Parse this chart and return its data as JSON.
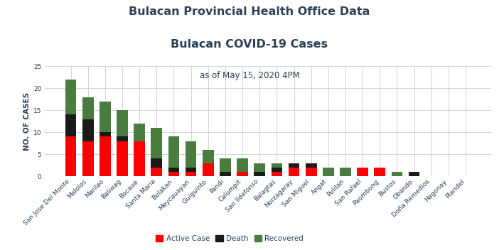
{
  "title_line1": "Bulacan Provincial Health Office Data",
  "title_line2": "Bulacan COVID-19 Cases",
  "subtitle": "as of May 15, 2020 4PM",
  "ylabel": "NO. OF CASES",
  "ylim": [
    0,
    25
  ],
  "yticks": [
    0,
    5,
    10,
    15,
    20,
    25
  ],
  "categories": [
    "San Jose Del Monte",
    "Malolos",
    "Marilao",
    "Baliwag",
    "Bocaue",
    "Santa Maria",
    "Bulakan",
    "Meycauayan",
    "Guiguinto",
    "Pandi",
    "Calumpit",
    "San Ildefonso",
    "Balagtas",
    "Norzagaray",
    "San Miguel",
    "Angat",
    "Pulilan",
    "San Rafael",
    "Paombong",
    "Bustos",
    "Obando",
    "Doña Remedios",
    "Hagonoy",
    "Plaridel"
  ],
  "active": [
    9,
    8,
    9,
    8,
    8,
    2,
    1,
    1,
    3,
    0,
    1,
    0,
    1,
    2,
    2,
    0,
    0,
    2,
    2,
    0,
    0,
    0,
    0,
    0
  ],
  "death": [
    5,
    5,
    1,
    1,
    0,
    2,
    1,
    1,
    0,
    1,
    0,
    1,
    1,
    1,
    1,
    0,
    0,
    0,
    0,
    0,
    1,
    0,
    0,
    0
  ],
  "recovered": [
    8,
    5,
    7,
    6,
    4,
    7,
    7,
    6,
    3,
    3,
    3,
    2,
    1,
    0,
    0,
    2,
    2,
    0,
    0,
    1,
    0,
    0,
    0,
    0
  ],
  "active_color": "#ff0000",
  "death_color": "#1a1a1a",
  "recovered_color": "#4a7c3f",
  "title_color": "#2d4059",
  "bg_color": "#ffffff",
  "grid_color": "#cccccc",
  "title1_fontsize": 11.5,
  "title2_fontsize": 11.5,
  "subtitle_fontsize": 8.5,
  "ylabel_fontsize": 7.5,
  "tick_fontsize": 6.5,
  "legend_fontsize": 7.5
}
